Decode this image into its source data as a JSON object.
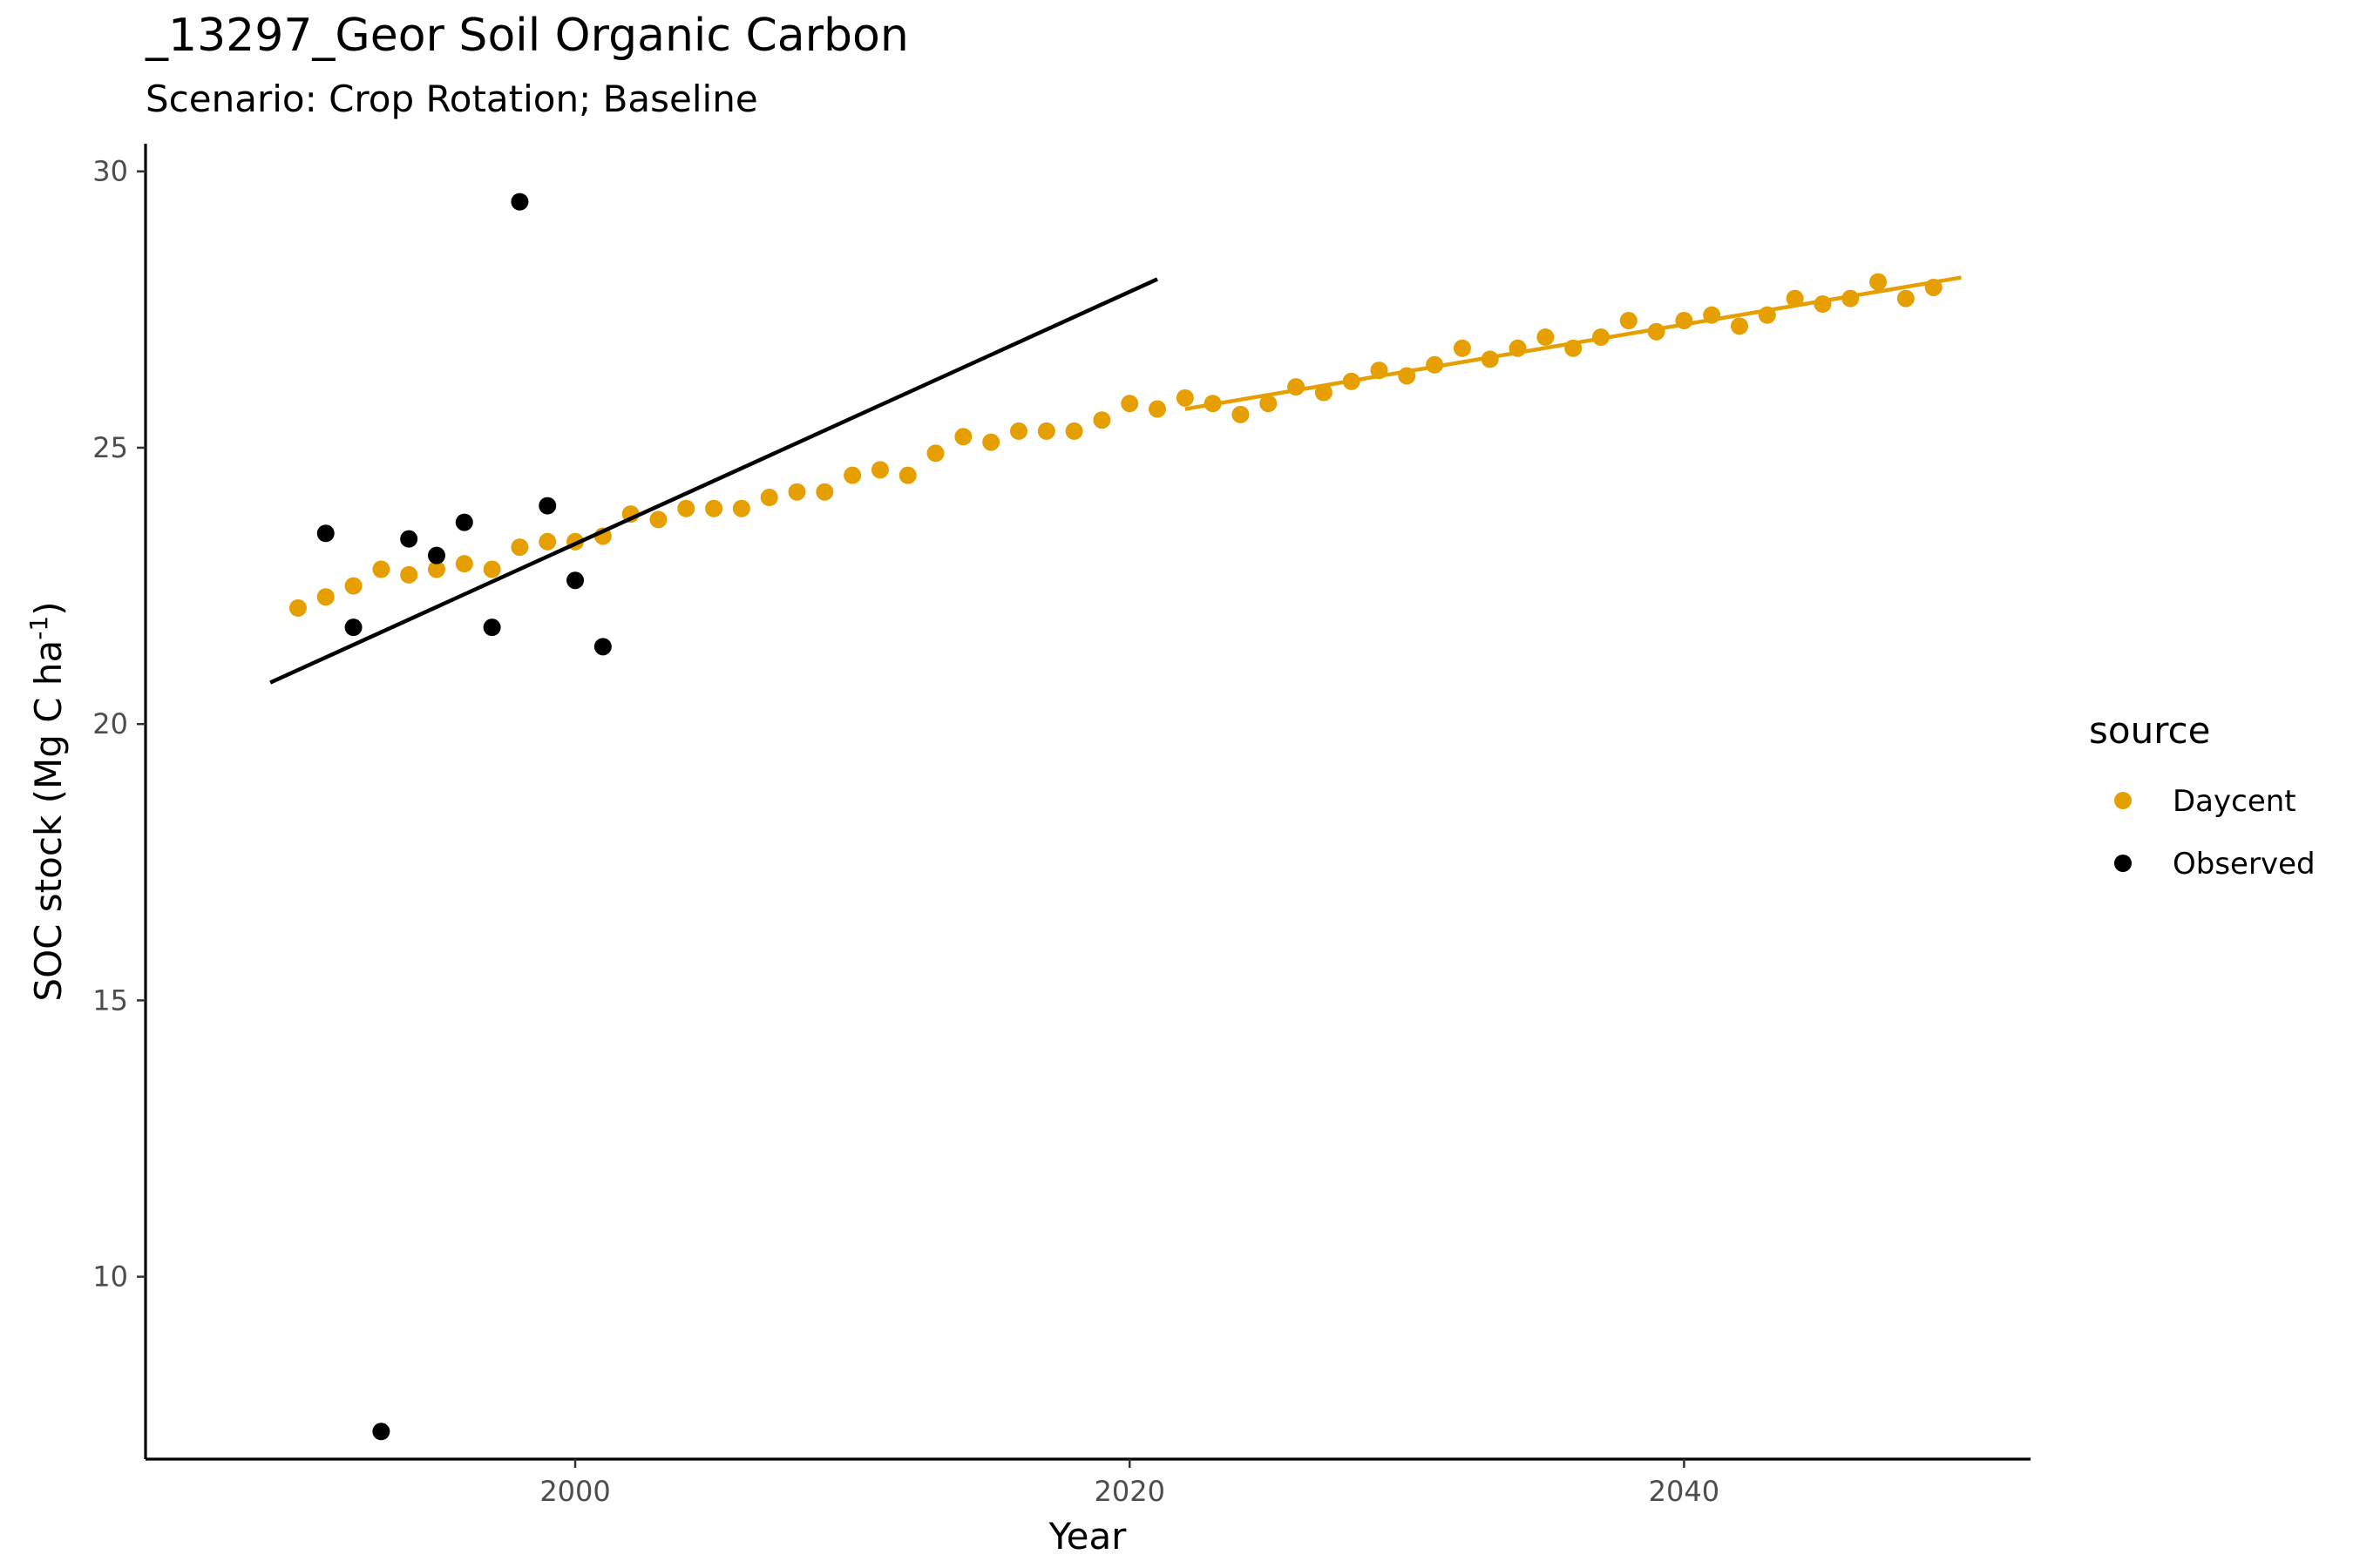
{
  "chart_data": {
    "type": "scatter",
    "title": "_13297_Geor Soil Organic Carbon",
    "subtitle": "Scenario: Crop Rotation; Baseline",
    "xlabel": "Year",
    "ylabel": "SOC stock (Mg C ha",
    "ylabel_superscript": "-1",
    "ylabel_suffix": ")",
    "xlim": [
      1984.5,
      2052.5
    ],
    "ylim": [
      6.7,
      30.5
    ],
    "x_ticks": [
      2000,
      2020,
      2040
    ],
    "y_ticks": [
      10,
      15,
      20,
      25,
      30
    ],
    "grid": false,
    "legend": {
      "title": "source",
      "position": "right",
      "entries": [
        "Daycent",
        "Observed"
      ]
    },
    "series": [
      {
        "name": "Daycent",
        "color": "#E69F00",
        "x": [
          1990,
          1991,
          1992,
          1993,
          1994,
          1995,
          1996,
          1997,
          1998,
          1999,
          2000,
          2001,
          2002,
          2003,
          2004,
          2005,
          2006,
          2007,
          2008,
          2009,
          2010,
          2011,
          2012,
          2013,
          2014,
          2015,
          2016,
          2017,
          2018,
          2019,
          2020,
          2021,
          2022,
          2023,
          2024,
          2025,
          2026,
          2027,
          2028,
          2029,
          2030,
          2031,
          2032,
          2033,
          2034,
          2035,
          2036,
          2037,
          2038,
          2039,
          2040,
          2041,
          2042,
          2043,
          2044,
          2045,
          2046,
          2047,
          2048,
          2049
        ],
        "y": [
          22.1,
          22.3,
          22.5,
          22.8,
          22.7,
          22.8,
          22.9,
          22.8,
          23.2,
          23.3,
          23.3,
          23.4,
          23.8,
          23.7,
          23.9,
          23.9,
          23.9,
          24.1,
          24.2,
          24.2,
          24.5,
          24.6,
          24.5,
          24.9,
          25.2,
          25.1,
          25.3,
          25.3,
          25.3,
          25.5,
          25.8,
          25.7,
          25.9,
          25.8,
          25.6,
          25.8,
          26.1,
          26.0,
          26.2,
          26.4,
          26.3,
          26.5,
          26.8,
          26.6,
          26.8,
          27.0,
          26.8,
          27.0,
          27.3,
          27.1,
          27.3,
          27.4,
          27.2,
          27.4,
          27.7,
          27.6,
          27.7,
          28.0,
          27.7,
          27.9
        ]
      },
      {
        "name": "Observed",
        "color": "#000000",
        "x": [
          1991,
          1992,
          1993,
          1994,
          1995,
          1996,
          1997,
          1998,
          1999,
          2000,
          2001
        ],
        "y": [
          23.45,
          21.75,
          7.2,
          23.35,
          23.05,
          23.65,
          21.75,
          29.45,
          23.95,
          22.6,
          21.4
        ]
      }
    ],
    "trend_lines": [
      {
        "series": "Observed",
        "color": "#000000",
        "x": [
          1989,
          2021
        ],
        "y": [
          20.75,
          28.05
        ]
      },
      {
        "series": "Daycent",
        "color": "#E69F00",
        "x": [
          2022,
          2050
        ],
        "y": [
          25.7,
          28.08
        ]
      }
    ]
  }
}
